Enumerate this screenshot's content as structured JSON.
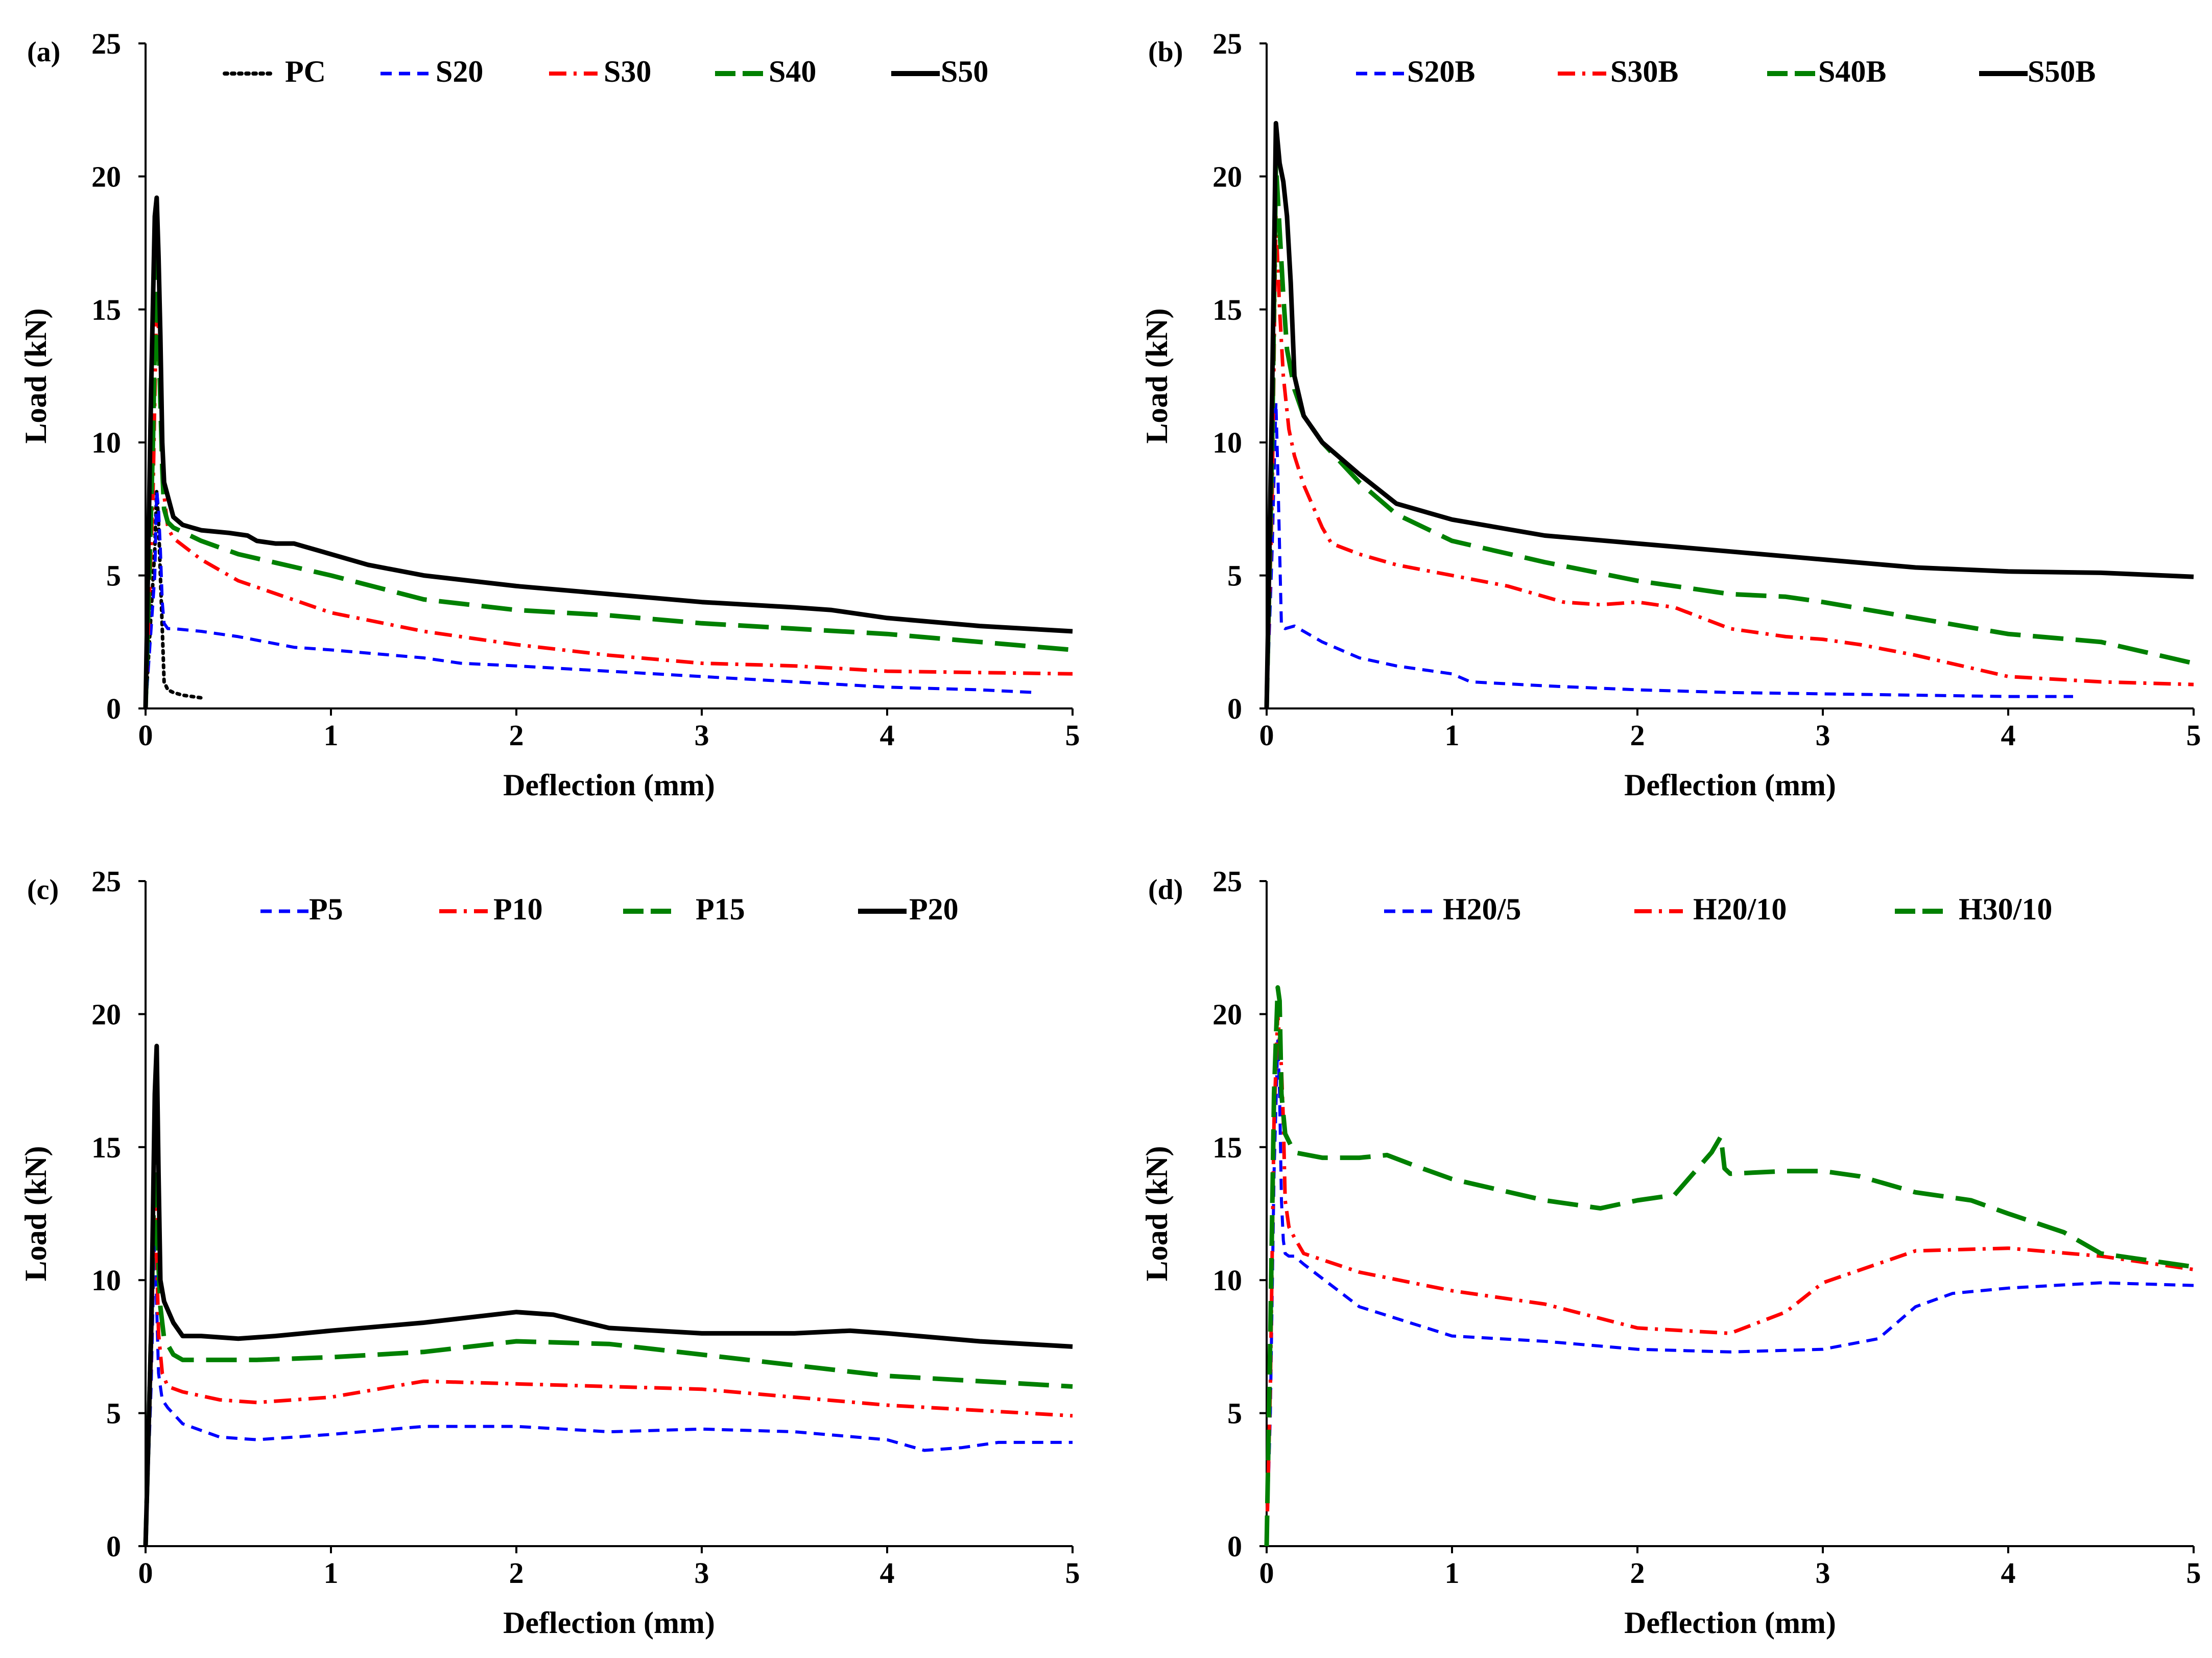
{
  "chart_data": [
    {
      "type": "line",
      "panel_label": "(a)",
      "xlabel": "Deflection (mm)",
      "ylabel": "Load (kN)",
      "xlim": [
        0,
        5
      ],
      "ylim": [
        0,
        25
      ],
      "xticks": [
        "0",
        "1",
        "2",
        "3",
        "4",
        "5"
      ],
      "yticks": [
        "0",
        "5",
        "10",
        "15",
        "20",
        "25"
      ],
      "legend_position": "top",
      "series": [
        {
          "name": "PC",
          "color": "#000000",
          "dash": "dotted",
          "x": [
            0,
            0.05,
            0.06,
            0.07,
            0.08,
            0.09,
            0.1,
            0.12,
            0.15,
            0.2,
            0.3
          ],
          "y": [
            0,
            6,
            8.2,
            7,
            5,
            3,
            1,
            0.7,
            0.6,
            0.5,
            0.4
          ]
        },
        {
          "name": "S20",
          "color": "#0000ff",
          "dash": "short",
          "x": [
            0,
            0.05,
            0.06,
            0.07,
            0.08,
            0.09,
            0.1,
            0.12,
            0.15,
            0.3,
            0.5,
            0.8,
            1.0,
            1.5,
            1.7,
            2.0,
            2.5,
            3.0,
            3.5,
            4.0,
            4.5,
            4.8
          ],
          "y": [
            0,
            5,
            8.2,
            7.5,
            6,
            4,
            3.2,
            3.0,
            3.0,
            2.9,
            2.7,
            2.3,
            2.2,
            1.9,
            1.7,
            1.6,
            1.4,
            1.2,
            1.0,
            0.8,
            0.7,
            0.6
          ]
        },
        {
          "name": "S30",
          "color": "#ff0000",
          "dash": "dashdot",
          "x": [
            0,
            0.04,
            0.06,
            0.08,
            0.1,
            0.12,
            0.15,
            0.3,
            0.5,
            1.0,
            1.5,
            2.0,
            2.5,
            3.0,
            3.5,
            4.0,
            4.5,
            5.0
          ],
          "y": [
            0,
            8,
            15.5,
            13,
            8,
            6.8,
            6.4,
            5.6,
            4.8,
            3.6,
            2.9,
            2.4,
            2.0,
            1.7,
            1.6,
            1.4,
            1.35,
            1.3
          ]
        },
        {
          "name": "S40",
          "color": "#008000",
          "dash": "long",
          "x": [
            0,
            0.04,
            0.06,
            0.07,
            0.09,
            0.1,
            0.12,
            0.15,
            0.3,
            0.5,
            1.0,
            1.5,
            2.0,
            2.5,
            3.0,
            3.5,
            4.0,
            4.5,
            5.0
          ],
          "y": [
            0,
            10,
            17.5,
            14,
            9,
            7.5,
            7.0,
            6.8,
            6.3,
            5.8,
            5.0,
            4.1,
            3.7,
            3.5,
            3.2,
            3.0,
            2.8,
            2.5,
            2.2
          ]
        },
        {
          "name": "S50",
          "color": "#000000",
          "dash": "solid",
          "x": [
            0,
            0.03,
            0.05,
            0.06,
            0.07,
            0.08,
            0.09,
            0.1,
            0.15,
            0.2,
            0.3,
            0.45,
            0.55,
            0.6,
            0.7,
            0.8,
            0.85,
            1.0,
            1.2,
            1.5,
            2.0,
            2.5,
            3.0,
            3.5,
            3.7,
            4.0,
            4.5,
            5.0
          ],
          "y": [
            0,
            12,
            18.5,
            19.2,
            17,
            14,
            10,
            8.5,
            7.2,
            6.9,
            6.7,
            6.6,
            6.5,
            6.3,
            6.2,
            6.2,
            6.1,
            5.8,
            5.4,
            5.0,
            4.6,
            4.3,
            4.0,
            3.8,
            3.7,
            3.4,
            3.1,
            2.9
          ]
        }
      ]
    },
    {
      "type": "line",
      "panel_label": "(b)",
      "xlabel": "Deflection (mm)",
      "ylabel": "Load (kN)",
      "xlim": [
        0,
        5
      ],
      "ylim": [
        0,
        25
      ],
      "xticks": [
        "0",
        "1",
        "2",
        "3",
        "4",
        "5"
      ],
      "yticks": [
        "0",
        "5",
        "10",
        "15",
        "20",
        "25"
      ],
      "legend_position": "top",
      "series": [
        {
          "name": "S20B",
          "color": "#0000ff",
          "dash": "short",
          "x": [
            0,
            0.03,
            0.05,
            0.06,
            0.07,
            0.08,
            0.1,
            0.15,
            0.2,
            0.3,
            0.5,
            0.7,
            1.0,
            1.1,
            1.5,
            2.0,
            2.5,
            3.0,
            3.5,
            4.0,
            4.35
          ],
          "y": [
            0,
            6,
            11.5,
            9,
            6,
            3.1,
            3.0,
            3.1,
            2.9,
            2.5,
            1.9,
            1.6,
            1.3,
            1.0,
            0.85,
            0.7,
            0.6,
            0.55,
            0.5,
            0.45,
            0.45
          ]
        },
        {
          "name": "S30B",
          "color": "#ff0000",
          "dash": "dashdot",
          "x": [
            0,
            0.03,
            0.05,
            0.07,
            0.09,
            0.12,
            0.15,
            0.2,
            0.3,
            0.35,
            0.5,
            0.7,
            1.0,
            1.3,
            1.6,
            1.8,
            2.0,
            2.2,
            2.5,
            2.8,
            3.0,
            3.2,
            3.5,
            4.0,
            4.5,
            5.0
          ],
          "y": [
            0,
            8,
            18.5,
            15,
            12.5,
            10.5,
            9.5,
            8.4,
            6.8,
            6.2,
            5.8,
            5.4,
            5.0,
            4.6,
            4.0,
            3.9,
            4.0,
            3.8,
            3.0,
            2.7,
            2.6,
            2.4,
            2.0,
            1.2,
            1.0,
            0.9
          ]
        },
        {
          "name": "S40B",
          "color": "#008000",
          "dash": "long",
          "x": [
            0,
            0.03,
            0.05,
            0.07,
            0.09,
            0.11,
            0.15,
            0.2,
            0.3,
            0.5,
            0.7,
            1.0,
            1.5,
            2.0,
            2.5,
            2.8,
            3.0,
            3.5,
            4.0,
            4.5,
            5.0
          ],
          "y": [
            0,
            10,
            20.5,
            18,
            15.5,
            13.5,
            12,
            11,
            10,
            8.5,
            7.3,
            6.3,
            5.5,
            4.8,
            4.3,
            4.2,
            4.0,
            3.4,
            2.8,
            2.5,
            1.7
          ]
        },
        {
          "name": "S50B",
          "color": "#000000",
          "dash": "solid",
          "x": [
            0,
            0.03,
            0.05,
            0.07,
            0.09,
            0.11,
            0.13,
            0.15,
            0.2,
            0.3,
            0.5,
            0.7,
            1.0,
            1.5,
            2.0,
            2.5,
            3.0,
            3.5,
            4.0,
            4.5,
            5.0
          ],
          "y": [
            0,
            12,
            22,
            20.5,
            19.8,
            18.5,
            16,
            12.5,
            11,
            10,
            8.8,
            7.7,
            7.1,
            6.5,
            6.2,
            5.9,
            5.6,
            5.3,
            5.15,
            5.1,
            4.95
          ]
        }
      ]
    },
    {
      "type": "line",
      "panel_label": "(c)",
      "xlabel": "Deflection (mm)",
      "ylabel": "Load (kN)",
      "xlim": [
        0,
        5
      ],
      "ylim": [
        0,
        25
      ],
      "xticks": [
        "0",
        "1",
        "2",
        "3",
        "4",
        "5"
      ],
      "yticks": [
        "0",
        "5",
        "10",
        "15",
        "20",
        "25"
      ],
      "legend_position": "top",
      "series": [
        {
          "name": "P5",
          "color": "#0000ff",
          "dash": "short",
          "x": [
            0,
            0.03,
            0.05,
            0.06,
            0.07,
            0.09,
            0.12,
            0.2,
            0.4,
            0.6,
            1.0,
            1.5,
            2.0,
            2.5,
            3.0,
            3.5,
            4.0,
            4.2,
            4.4,
            4.6,
            5.0
          ],
          "y": [
            0,
            6,
            12,
            9,
            6.5,
            5.5,
            5.2,
            4.6,
            4.1,
            4.0,
            4.2,
            4.5,
            4.5,
            4.3,
            4.4,
            4.3,
            4.0,
            3.6,
            3.7,
            3.9,
            3.9
          ]
        },
        {
          "name": "P10",
          "color": "#ff0000",
          "dash": "dashdot",
          "x": [
            0,
            0.03,
            0.05,
            0.06,
            0.07,
            0.09,
            0.12,
            0.2,
            0.4,
            0.6,
            1.0,
            1.5,
            2.0,
            2.5,
            3.0,
            3.5,
            4.0,
            4.5,
            5.0
          ],
          "y": [
            0,
            7,
            14,
            11,
            8,
            6.5,
            6.0,
            5.8,
            5.5,
            5.4,
            5.6,
            6.2,
            6.1,
            6.0,
            5.9,
            5.6,
            5.3,
            5.1,
            4.9
          ]
        },
        {
          "name": "P15",
          "color": "#008000",
          "dash": "long",
          "x": [
            0,
            0.03,
            0.05,
            0.06,
            0.08,
            0.1,
            0.15,
            0.2,
            0.4,
            0.6,
            1.0,
            1.5,
            2.0,
            2.5,
            3.0,
            3.5,
            4.0,
            4.5,
            5.0
          ],
          "y": [
            0,
            8,
            15,
            12,
            9,
            7.8,
            7.2,
            7.0,
            7.0,
            7.0,
            7.1,
            7.3,
            7.7,
            7.6,
            7.2,
            6.8,
            6.4,
            6.2,
            6.0
          ]
        },
        {
          "name": "P20",
          "color": "#000000",
          "dash": "solid",
          "x": [
            0,
            0.03,
            0.05,
            0.06,
            0.07,
            0.08,
            0.1,
            0.15,
            0.2,
            0.3,
            0.5,
            0.7,
            1.0,
            1.5,
            2.0,
            2.2,
            2.5,
            3.0,
            3.5,
            3.8,
            4.0,
            4.5,
            5.0
          ],
          "y": [
            0,
            8,
            17,
            18.8,
            14,
            10,
            9.2,
            8.4,
            7.9,
            7.9,
            7.8,
            7.9,
            8.1,
            8.4,
            8.8,
            8.7,
            8.2,
            8.0,
            8.0,
            8.1,
            8.0,
            7.7,
            7.5
          ]
        }
      ]
    },
    {
      "type": "line",
      "panel_label": "(d)",
      "xlabel": "Deflection (mm)",
      "ylabel": "Load (kN)",
      "xlim": [
        0,
        5
      ],
      "ylim": [
        0,
        25
      ],
      "xticks": [
        "0",
        "1",
        "2",
        "3",
        "4",
        "5"
      ],
      "yticks": [
        "0",
        "5",
        "10",
        "15",
        "20",
        "25"
      ],
      "legend_position": "top",
      "series": [
        {
          "name": "H20/5",
          "color": "#0000ff",
          "dash": "short",
          "x": [
            0,
            0.02,
            0.04,
            0.06,
            0.07,
            0.08,
            0.09,
            0.1,
            0.12,
            0.15,
            0.2,
            0.5,
            1.0,
            1.5,
            2.0,
            2.5,
            3.0,
            3.3,
            3.5,
            3.7,
            4.0,
            4.5,
            5.0
          ],
          "y": [
            0,
            5,
            14,
            19,
            17,
            13,
            11.5,
            11,
            10.9,
            10.9,
            10.6,
            9.0,
            7.9,
            7.7,
            7.4,
            7.3,
            7.4,
            7.8,
            9.0,
            9.5,
            9.7,
            9.9,
            9.8
          ]
        },
        {
          "name": "H20/10",
          "color": "#ff0000",
          "dash": "dashdot",
          "x": [
            0,
            0.02,
            0.04,
            0.06,
            0.08,
            0.09,
            0.1,
            0.12,
            0.15,
            0.2,
            0.5,
            1.0,
            1.5,
            2.0,
            2.5,
            2.8,
            3.0,
            3.5,
            4.0,
            4.5,
            5.0
          ],
          "y": [
            0,
            6,
            16,
            20,
            18,
            16,
            13,
            12,
            11.6,
            11.0,
            10.3,
            9.6,
            9.1,
            8.2,
            8.0,
            8.8,
            9.9,
            11.1,
            11.2,
            10.9,
            10.4
          ]
        },
        {
          "name": "H30/10",
          "color": "#008000",
          "dash": "long",
          "x": [
            0,
            0.02,
            0.04,
            0.06,
            0.07,
            0.08,
            0.1,
            0.15,
            0.3,
            0.5,
            0.65,
            0.8,
            1.0,
            1.5,
            1.8,
            2.0,
            2.2,
            2.4,
            2.45,
            2.47,
            2.5,
            2.8,
            3.0,
            3.2,
            3.5,
            3.8,
            4.0,
            4.3,
            4.5,
            5.0
          ],
          "y": [
            0,
            8,
            17,
            21,
            20.5,
            17,
            15.5,
            14.8,
            14.6,
            14.6,
            14.7,
            14.3,
            13.8,
            13.0,
            12.7,
            13.0,
            13.2,
            14.8,
            15.4,
            14.2,
            14.0,
            14.1,
            14.1,
            13.9,
            13.3,
            13.0,
            12.5,
            11.8,
            11.0,
            10.5
          ]
        }
      ]
    }
  ]
}
